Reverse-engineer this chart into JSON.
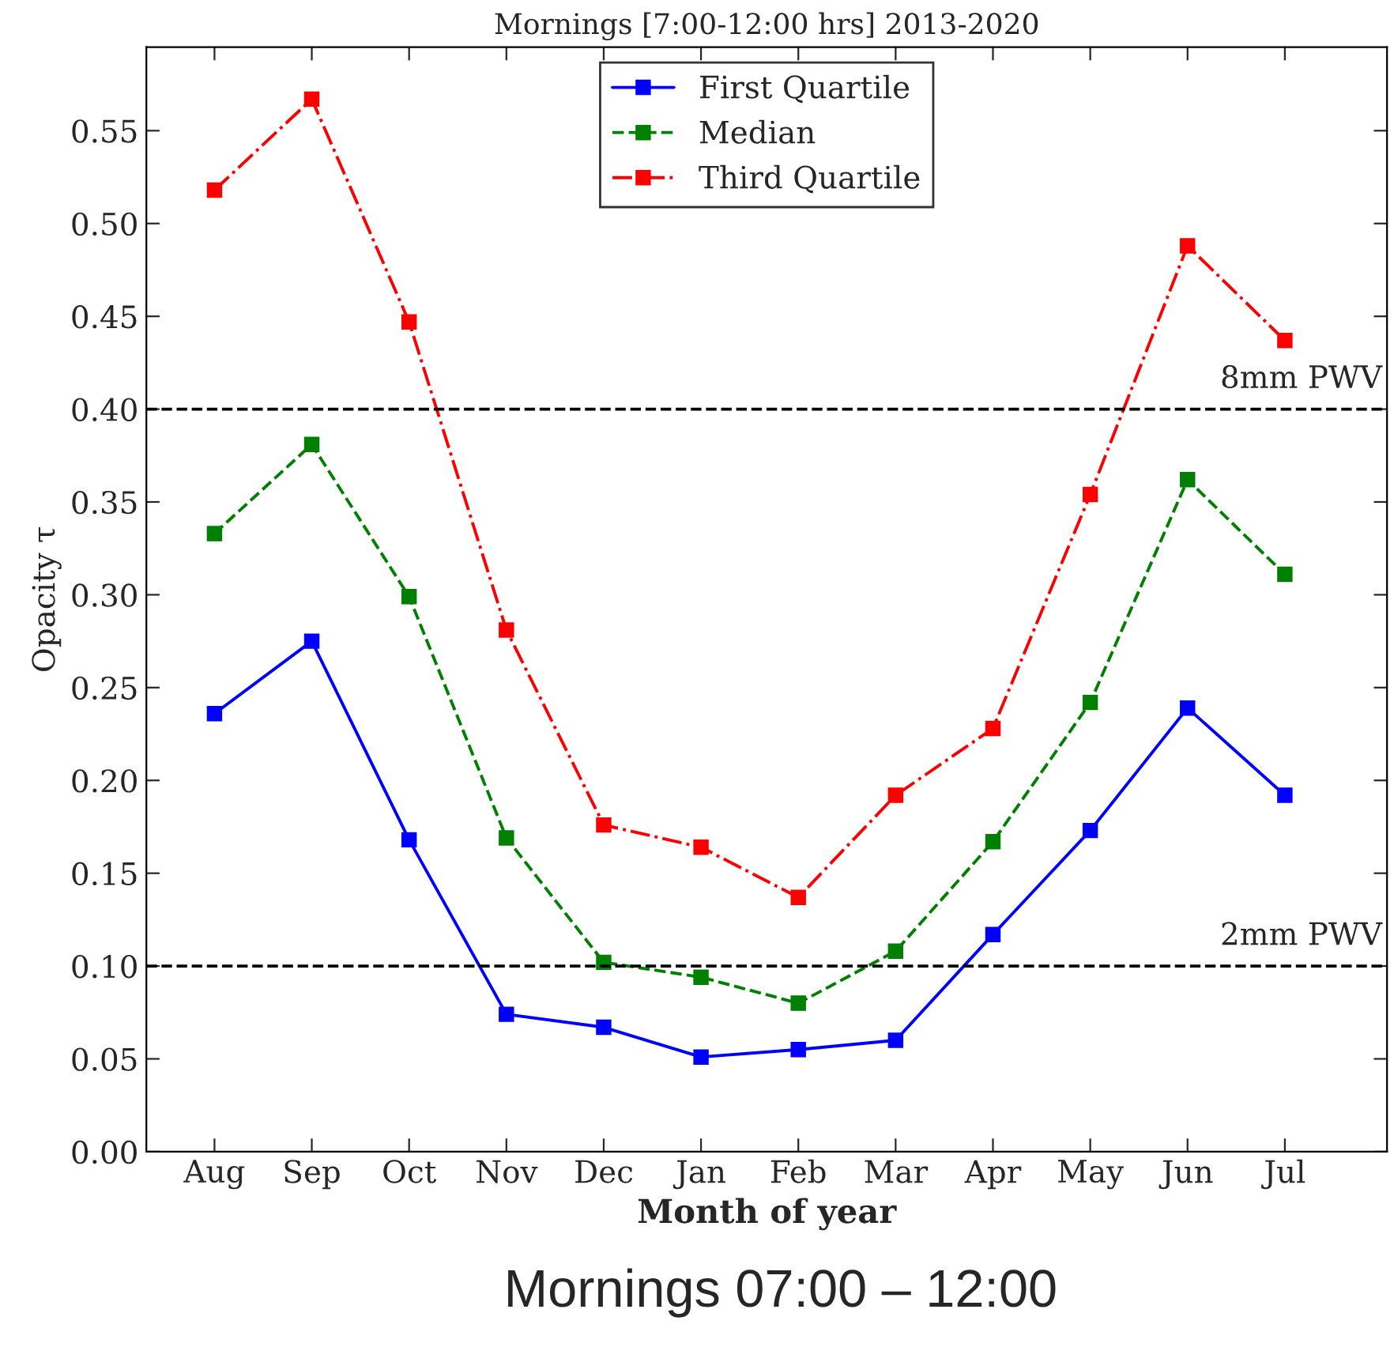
{
  "chart_data": {
    "type": "line",
    "title": "Mornings [7:00-12:00 hrs] 2013-2020",
    "xlabel": "Month of year",
    "ylabel": "Opacity τ",
    "categories": [
      "Aug",
      "Sep",
      "Oct",
      "Nov",
      "Dec",
      "Jan",
      "Feb",
      "Mar",
      "Apr",
      "May",
      "Jun",
      "Jul"
    ],
    "series": [
      {
        "name": "First Quartile",
        "color": "#0000ff",
        "line_style": "solid",
        "values": [
          0.236,
          0.275,
          0.168,
          0.074,
          0.067,
          0.051,
          0.055,
          0.06,
          0.117,
          0.173,
          0.239,
          0.192
        ]
      },
      {
        "name": "Median",
        "color": "#008000",
        "line_style": "dashed",
        "values": [
          0.333,
          0.381,
          0.299,
          0.169,
          0.102,
          0.094,
          0.08,
          0.108,
          0.167,
          0.242,
          0.362,
          0.311
        ]
      },
      {
        "name": "Third Quartile",
        "color": "#ff0000",
        "line_style": "dashdot",
        "values": [
          0.518,
          0.567,
          0.447,
          0.281,
          0.176,
          0.164,
          0.137,
          0.192,
          0.228,
          0.354,
          0.488,
          0.437
        ]
      }
    ],
    "ylim": [
      0,
      0.595
    ],
    "yticks": [
      {
        "value": 0,
        "label": "0.00"
      },
      {
        "value": 0.05,
        "label": "0.05"
      },
      {
        "value": 0.1,
        "label": "0.10"
      },
      {
        "value": 0.15,
        "label": "0.15"
      },
      {
        "value": 0.2,
        "label": "0.20"
      },
      {
        "value": 0.25,
        "label": "0.25"
      },
      {
        "value": 0.3,
        "label": "0.30"
      },
      {
        "value": 0.35,
        "label": "0.35"
      },
      {
        "value": 0.4,
        "label": "0.40"
      },
      {
        "value": 0.45,
        "label": "0.45"
      },
      {
        "value": 0.5,
        "label": "0.50"
      },
      {
        "value": 0.55,
        "label": "0.55"
      }
    ],
    "ref_lines": [
      {
        "axis": "y",
        "value": 0.4,
        "label": "8mm PWV",
        "color": "#000000",
        "line_style": "dashed"
      },
      {
        "axis": "y",
        "value": 0.1,
        "label": "2mm PWV",
        "color": "#000000",
        "line_style": "dashed"
      }
    ],
    "annotations": [
      "Mornings 07:00 – 12:00"
    ],
    "marker": "square",
    "grid": false,
    "legend": "top center"
  }
}
